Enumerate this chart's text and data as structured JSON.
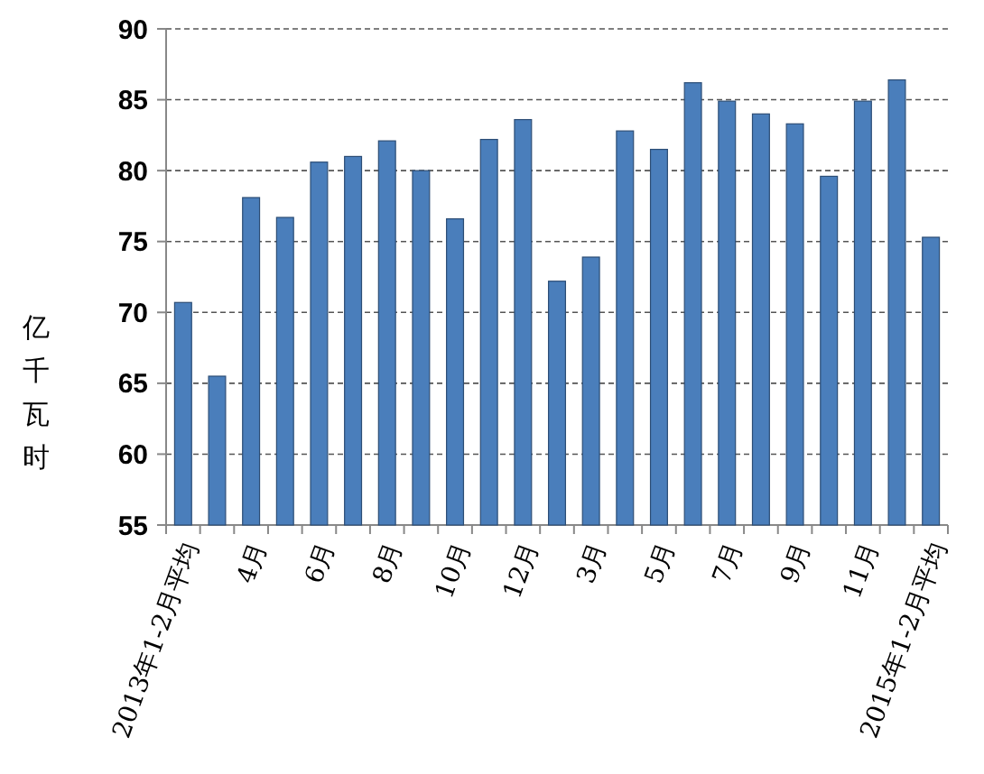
{
  "chart_data": {
    "type": "bar",
    "ylabel": "亿千瓦时",
    "categories": [
      "2013年1-2月平均",
      null,
      "4月",
      null,
      "6月",
      null,
      "8月",
      null,
      "10月",
      null,
      "12月",
      null,
      "3月",
      null,
      "5月",
      null,
      "7月",
      null,
      "9月",
      null,
      "11月",
      null,
      "2015年1-2月平均"
    ],
    "values": [
      70.7,
      65.5,
      78.1,
      76.7,
      80.6,
      81.0,
      82.1,
      80.0,
      76.6,
      82.2,
      83.6,
      72.2,
      73.9,
      82.8,
      81.5,
      86.2,
      84.9,
      84.0,
      83.3,
      79.6,
      84.9,
      86.4,
      75.3
    ],
    "color": "#4a7ebb",
    "ylim": [
      55,
      90
    ],
    "yticks": [
      55,
      60,
      65,
      70,
      75,
      80,
      85,
      90
    ],
    "grid": "y"
  }
}
